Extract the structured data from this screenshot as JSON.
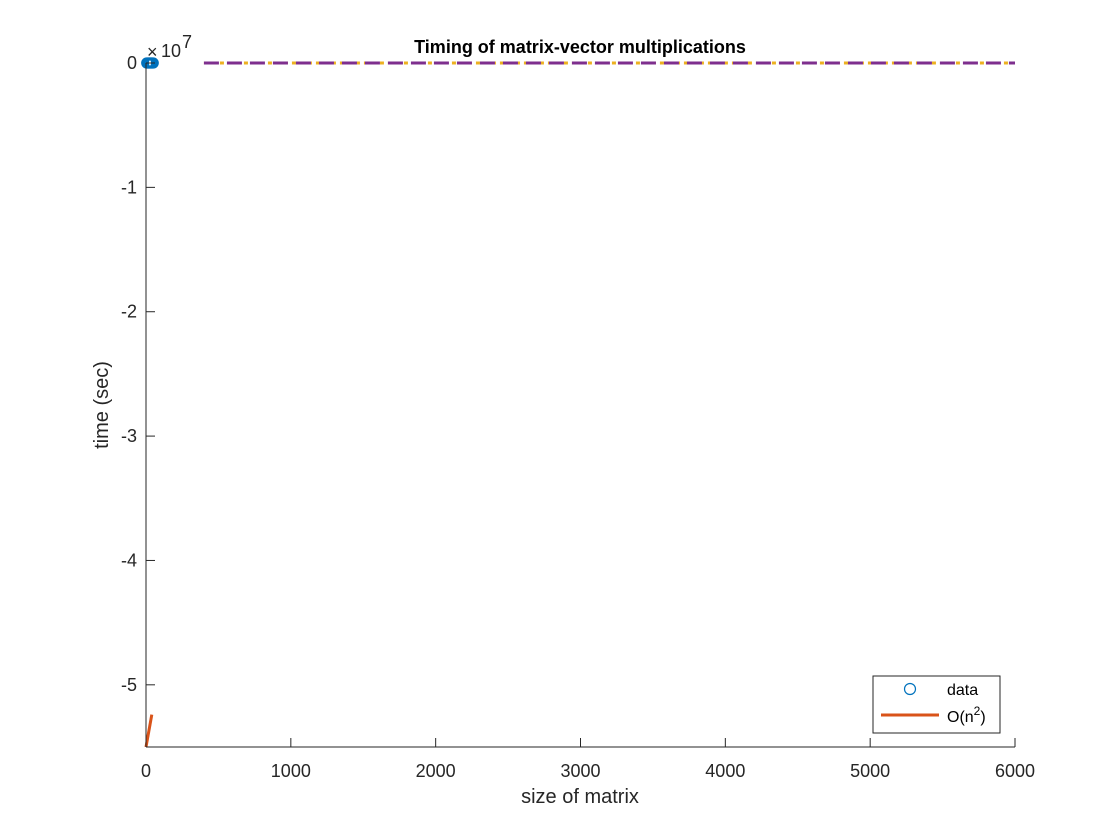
{
  "chart_data": {
    "type": "line",
    "title": "Timing of matrix-vector multiplications",
    "xlabel": "size of matrix",
    "ylabel": "time (sec)",
    "xlim": [
      0,
      6000
    ],
    "ylim": [
      -55000000,
      0
    ],
    "x_ticks": [
      0,
      1000,
      2000,
      3000,
      4000,
      5000,
      6000
    ],
    "x_tick_labels": [
      "0",
      "1000",
      "2000",
      "3000",
      "4000",
      "5000",
      "6000"
    ],
    "y_ticks": [
      0,
      -10000000,
      -20000000,
      -30000000,
      -40000000,
      -50000000
    ],
    "y_tick_labels": [
      "0",
      "-1",
      "-2",
      "-3",
      "-4",
      "-5"
    ],
    "y_exponent": {
      "base": "10",
      "power": "7"
    },
    "grid": false,
    "legend_position": "bottom-right",
    "series": [
      {
        "name": "data",
        "style": "markers",
        "marker": "circle",
        "color": "#0072BD",
        "x": [
          5,
          10,
          15,
          20,
          25,
          30,
          35,
          40,
          45,
          50
        ],
        "y": [
          0,
          0,
          0,
          0,
          0,
          0,
          0,
          0,
          0,
          0
        ]
      },
      {
        "name": "O(n²)",
        "style": "solid",
        "color": "#D95319",
        "x": [
          0,
          40
        ],
        "y": [
          -55000000,
          -52400000
        ]
      },
      {
        "style": "dashed",
        "color": "#EDB120",
        "x": [
          400,
          6000
        ],
        "y": [
          0,
          0
        ]
      },
      {
        "style": "dashed",
        "color": "#7E2F8E",
        "x": [
          400,
          6000
        ],
        "y": [
          0,
          0
        ]
      }
    ],
    "legend": [
      {
        "label": "data",
        "marker": "circle",
        "color": "#0072BD"
      },
      {
        "label_base": "O(n",
        "label_sup": "2",
        "label_end": ")",
        "marker": "line",
        "color": "#D95319"
      }
    ]
  }
}
